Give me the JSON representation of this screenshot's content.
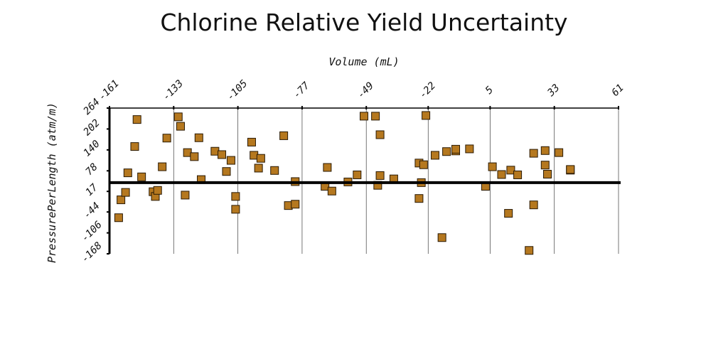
{
  "chart_data": {
    "type": "scatter",
    "title": "Chlorine Relative Yield Uncertainty",
    "xlabel": "Volume (mL)",
    "ylabel": "PressurePerLength (atm/m)",
    "x_ticks": [
      "-161",
      "-133",
      "-105",
      "-77",
      "-49",
      "-22",
      "5",
      "33",
      "61"
    ],
    "y_ticks": [
      "264",
      "202",
      "140",
      "78",
      "17",
      "-44",
      "-106",
      "-168"
    ],
    "xlim": [
      -161,
      61
    ],
    "ylim": [
      -168,
      264
    ],
    "x_axis_position": "top",
    "grid": "vertical",
    "baseline_y": 43,
    "marker": {
      "shape": "square",
      "color": "#b5781f",
      "edge": "#2a1a05"
    },
    "points": [
      {
        "x": -157,
        "y": -61
      },
      {
        "x": -156,
        "y": -8
      },
      {
        "x": -154,
        "y": 14
      },
      {
        "x": -153,
        "y": 72
      },
      {
        "x": -150,
        "y": 150
      },
      {
        "x": -149,
        "y": 230
      },
      {
        "x": -147,
        "y": 60
      },
      {
        "x": -142,
        "y": 16
      },
      {
        "x": -141,
        "y": 2
      },
      {
        "x": -140,
        "y": 20
      },
      {
        "x": -138,
        "y": 90
      },
      {
        "x": -136,
        "y": 175
      },
      {
        "x": -131,
        "y": 238
      },
      {
        "x": -130,
        "y": 210
      },
      {
        "x": -128,
        "y": 6
      },
      {
        "x": -127,
        "y": 132
      },
      {
        "x": -124,
        "y": 120
      },
      {
        "x": -122,
        "y": 176
      },
      {
        "x": -121,
        "y": 52
      },
      {
        "x": -115,
        "y": 136
      },
      {
        "x": -112,
        "y": 126
      },
      {
        "x": -110,
        "y": 76
      },
      {
        "x": -108,
        "y": 109
      },
      {
        "x": -106,
        "y": 2
      },
      {
        "x": -106,
        "y": -36
      },
      {
        "x": -99,
        "y": 163
      },
      {
        "x": -98,
        "y": 124
      },
      {
        "x": -96,
        "y": 86
      },
      {
        "x": -95,
        "y": 115
      },
      {
        "x": -89,
        "y": 79
      },
      {
        "x": -85,
        "y": 182
      },
      {
        "x": -83,
        "y": -25
      },
      {
        "x": -80,
        "y": -21
      },
      {
        "x": -80,
        "y": 46
      },
      {
        "x": -67,
        "y": 32
      },
      {
        "x": -66,
        "y": 88
      },
      {
        "x": -64,
        "y": 18
      },
      {
        "x": -57,
        "y": 45
      },
      {
        "x": -53,
        "y": 66
      },
      {
        "x": -50,
        "y": 240
      },
      {
        "x": -45,
        "y": 240
      },
      {
        "x": -44,
        "y": 35
      },
      {
        "x": -43,
        "y": 64
      },
      {
        "x": -43,
        "y": 185
      },
      {
        "x": -37,
        "y": 54
      },
      {
        "x": -26,
        "y": 101
      },
      {
        "x": -26,
        "y": -4
      },
      {
        "x": -25,
        "y": 43
      },
      {
        "x": -24,
        "y": 96
      },
      {
        "x": -23,
        "y": 242
      },
      {
        "x": -19,
        "y": 124
      },
      {
        "x": -16,
        "y": -120
      },
      {
        "x": -14,
        "y": 135
      },
      {
        "x": -10,
        "y": 137
      },
      {
        "x": -10,
        "y": 142
      },
      {
        "x": -4,
        "y": 143
      },
      {
        "x": 3,
        "y": 32
      },
      {
        "x": 6,
        "y": 90
      },
      {
        "x": 10,
        "y": 67
      },
      {
        "x": 13,
        "y": -48
      },
      {
        "x": 14,
        "y": 80
      },
      {
        "x": 17,
        "y": 66
      },
      {
        "x": 22,
        "y": -158
      },
      {
        "x": 24,
        "y": 130
      },
      {
        "x": 24,
        "y": -23
      },
      {
        "x": 29,
        "y": 138
      },
      {
        "x": 29,
        "y": 95
      },
      {
        "x": 30,
        "y": 68
      },
      {
        "x": 35,
        "y": 132
      },
      {
        "x": 40,
        "y": 80
      },
      {
        "x": 40,
        "y": 82
      }
    ]
  }
}
